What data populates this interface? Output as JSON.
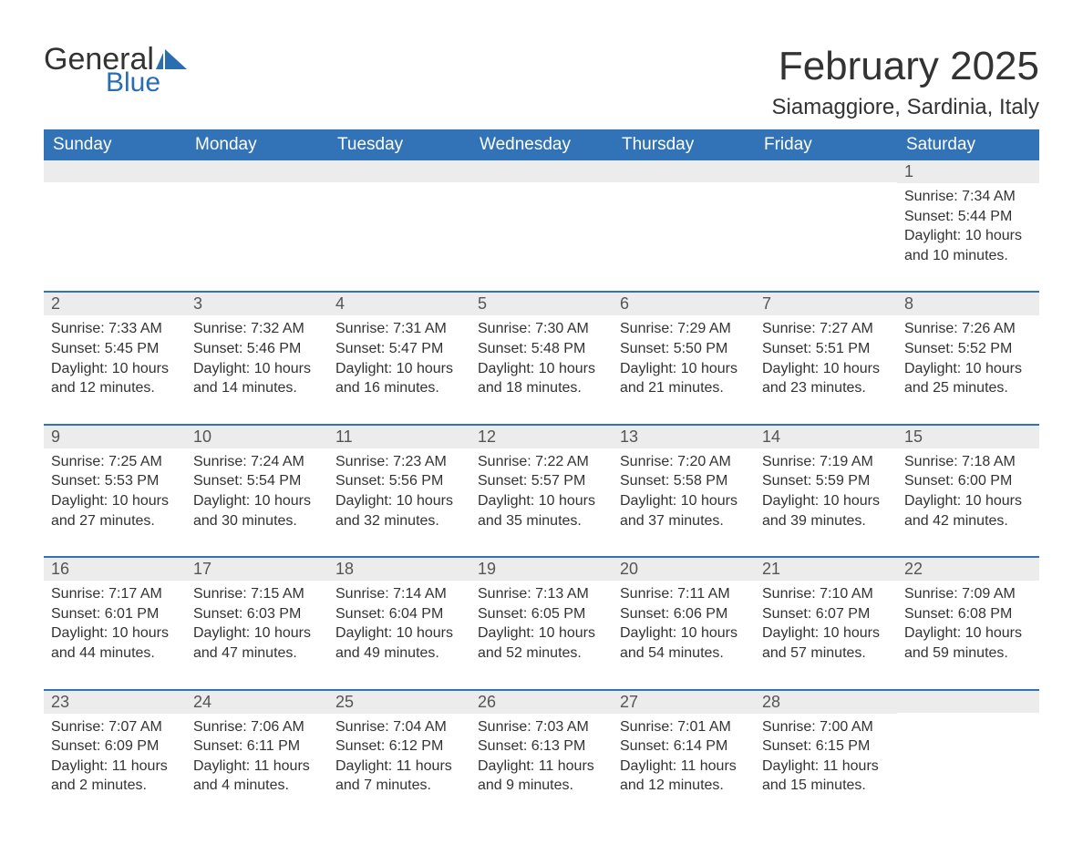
{
  "logo": {
    "word1": "General",
    "word2": "Blue",
    "accent": "#2a6db0"
  },
  "title": "February 2025",
  "location": "Siamaggiore, Sardinia, Italy",
  "colors": {
    "header_bg": "#3273b7",
    "header_text": "#ffffff",
    "daynum_bg": "#ececec",
    "row_divider": "#3273b7"
  },
  "columns": [
    "Sunday",
    "Monday",
    "Tuesday",
    "Wednesday",
    "Thursday",
    "Friday",
    "Saturday"
  ],
  "weeks": [
    [
      null,
      null,
      null,
      null,
      null,
      null,
      {
        "n": "1",
        "sunrise": "7:34 AM",
        "sunset": "5:44 PM",
        "daylight": "10 hours and 10 minutes."
      }
    ],
    [
      {
        "n": "2",
        "sunrise": "7:33 AM",
        "sunset": "5:45 PM",
        "daylight": "10 hours and 12 minutes."
      },
      {
        "n": "3",
        "sunrise": "7:32 AM",
        "sunset": "5:46 PM",
        "daylight": "10 hours and 14 minutes."
      },
      {
        "n": "4",
        "sunrise": "7:31 AM",
        "sunset": "5:47 PM",
        "daylight": "10 hours and 16 minutes."
      },
      {
        "n": "5",
        "sunrise": "7:30 AM",
        "sunset": "5:48 PM",
        "daylight": "10 hours and 18 minutes."
      },
      {
        "n": "6",
        "sunrise": "7:29 AM",
        "sunset": "5:50 PM",
        "daylight": "10 hours and 21 minutes."
      },
      {
        "n": "7",
        "sunrise": "7:27 AM",
        "sunset": "5:51 PM",
        "daylight": "10 hours and 23 minutes."
      },
      {
        "n": "8",
        "sunrise": "7:26 AM",
        "sunset": "5:52 PM",
        "daylight": "10 hours and 25 minutes."
      }
    ],
    [
      {
        "n": "9",
        "sunrise": "7:25 AM",
        "sunset": "5:53 PM",
        "daylight": "10 hours and 27 minutes."
      },
      {
        "n": "10",
        "sunrise": "7:24 AM",
        "sunset": "5:54 PM",
        "daylight": "10 hours and 30 minutes."
      },
      {
        "n": "11",
        "sunrise": "7:23 AM",
        "sunset": "5:56 PM",
        "daylight": "10 hours and 32 minutes."
      },
      {
        "n": "12",
        "sunrise": "7:22 AM",
        "sunset": "5:57 PM",
        "daylight": "10 hours and 35 minutes."
      },
      {
        "n": "13",
        "sunrise": "7:20 AM",
        "sunset": "5:58 PM",
        "daylight": "10 hours and 37 minutes."
      },
      {
        "n": "14",
        "sunrise": "7:19 AM",
        "sunset": "5:59 PM",
        "daylight": "10 hours and 39 minutes."
      },
      {
        "n": "15",
        "sunrise": "7:18 AM",
        "sunset": "6:00 PM",
        "daylight": "10 hours and 42 minutes."
      }
    ],
    [
      {
        "n": "16",
        "sunrise": "7:17 AM",
        "sunset": "6:01 PM",
        "daylight": "10 hours and 44 minutes."
      },
      {
        "n": "17",
        "sunrise": "7:15 AM",
        "sunset": "6:03 PM",
        "daylight": "10 hours and 47 minutes."
      },
      {
        "n": "18",
        "sunrise": "7:14 AM",
        "sunset": "6:04 PM",
        "daylight": "10 hours and 49 minutes."
      },
      {
        "n": "19",
        "sunrise": "7:13 AM",
        "sunset": "6:05 PM",
        "daylight": "10 hours and 52 minutes."
      },
      {
        "n": "20",
        "sunrise": "7:11 AM",
        "sunset": "6:06 PM",
        "daylight": "10 hours and 54 minutes."
      },
      {
        "n": "21",
        "sunrise": "7:10 AM",
        "sunset": "6:07 PM",
        "daylight": "10 hours and 57 minutes."
      },
      {
        "n": "22",
        "sunrise": "7:09 AM",
        "sunset": "6:08 PM",
        "daylight": "10 hours and 59 minutes."
      }
    ],
    [
      {
        "n": "23",
        "sunrise": "7:07 AM",
        "sunset": "6:09 PM",
        "daylight": "11 hours and 2 minutes."
      },
      {
        "n": "24",
        "sunrise": "7:06 AM",
        "sunset": "6:11 PM",
        "daylight": "11 hours and 4 minutes."
      },
      {
        "n": "25",
        "sunrise": "7:04 AM",
        "sunset": "6:12 PM",
        "daylight": "11 hours and 7 minutes."
      },
      {
        "n": "26",
        "sunrise": "7:03 AM",
        "sunset": "6:13 PM",
        "daylight": "11 hours and 9 minutes."
      },
      {
        "n": "27",
        "sunrise": "7:01 AM",
        "sunset": "6:14 PM",
        "daylight": "11 hours and 12 minutes."
      },
      {
        "n": "28",
        "sunrise": "7:00 AM",
        "sunset": "6:15 PM",
        "daylight": "11 hours and 15 minutes."
      },
      null
    ]
  ],
  "labels": {
    "sunrise": "Sunrise: ",
    "sunset": "Sunset: ",
    "daylight": "Daylight: "
  }
}
